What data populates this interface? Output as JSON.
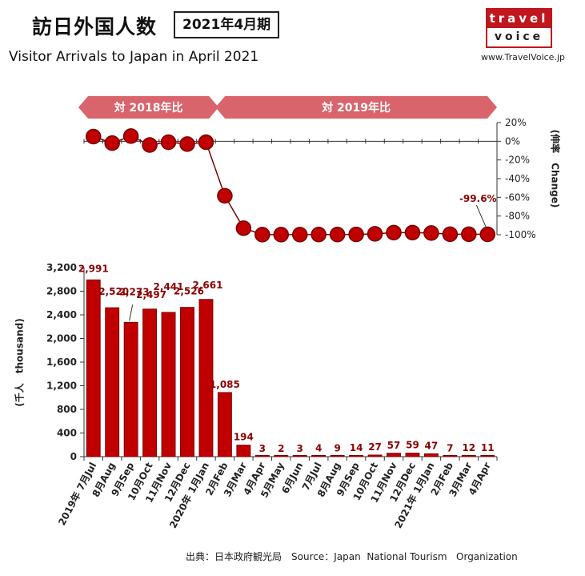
{
  "header": {
    "title_jp": "訪日外国人数",
    "period": "2021年4月期",
    "subtitle_en": "Visitor Arrivals to Japan in April 2021",
    "site": "www.TravelVoice.jp"
  },
  "logo": {
    "top": "travel",
    "bottom": "voice"
  },
  "source": "出典：日本政府観光局　Source：Japan  National Tourism   Organization",
  "colors": {
    "bar": "#c00000",
    "bar_stroke": "#7a0000",
    "arrow": "#d9646b",
    "label": "#8b0000"
  },
  "chart_data": [
    {
      "type": "line",
      "segments": [
        {
          "label": "対 2018年比",
          "from_index": 0,
          "to_index": 6
        },
        {
          "label": "対 2019年比",
          "from_index": 7,
          "to_index": 21
        }
      ],
      "values": [
        5.0,
        -2.0,
        5.5,
        -4.0,
        -1.0,
        -3.0,
        -1.0,
        -58.3,
        -93.0,
        -99.9,
        -99.9,
        -99.9,
        -99.8,
        -99.8,
        -99.7,
        -99.0,
        -97.7,
        -97.7,
        -98.2,
        -99.5,
        -99.5,
        -99.6
      ],
      "ylim": [
        -100,
        20
      ],
      "yticks": [
        "20%",
        "0%",
        "-20%",
        "-40%",
        "-60%",
        "-80%",
        "-100%"
      ],
      "ytick_values": [
        20,
        0,
        -20,
        -40,
        -60,
        -80,
        -100
      ],
      "ylabel": "(伸率　Change)",
      "annotation": {
        "text": "-99.6%",
        "index": 21
      }
    },
    {
      "type": "bar",
      "categories": [
        "2019年 7月Jul",
        "8月Aug",
        "9月Sep",
        "10月Oct",
        "11月Nov",
        "12月Dec",
        "2020年 1月Jan",
        "2月Feb",
        "3月Mar",
        "4月Apr",
        "5月May",
        "6月Jun",
        "7月Jul",
        "8月Aug",
        "9月Sep",
        "10月Oct",
        "11月Nov",
        "12月Dec",
        "2021年 1月Jan",
        "2月Feb",
        "3月Mar",
        "4月Apr"
      ],
      "values": [
        2991,
        2520,
        2273,
        2497,
        2441,
        2526,
        2661,
        1085,
        194,
        3,
        2,
        3,
        4,
        9,
        14,
        27,
        57,
        59,
        47,
        7,
        12,
        11
      ],
      "value_labels": [
        "2,991",
        "2,520",
        "2,273",
        "2,497",
        "2,441",
        "2,526",
        "2,661",
        "1,085",
        "194",
        "3",
        "2",
        "3",
        "4",
        "9",
        "14",
        "27",
        "57",
        "59",
        "47",
        "7",
        "12",
        "11"
      ],
      "ylim": [
        0,
        3200
      ],
      "yticks": [
        "0",
        "400",
        "800",
        "1,200",
        "1,600",
        "2,000",
        "2,400",
        "2,800",
        "3,200"
      ],
      "ytick_values": [
        0,
        400,
        800,
        1200,
        1600,
        2000,
        2400,
        2800,
        3200
      ],
      "ylabel": "(千人　thousand)"
    }
  ]
}
